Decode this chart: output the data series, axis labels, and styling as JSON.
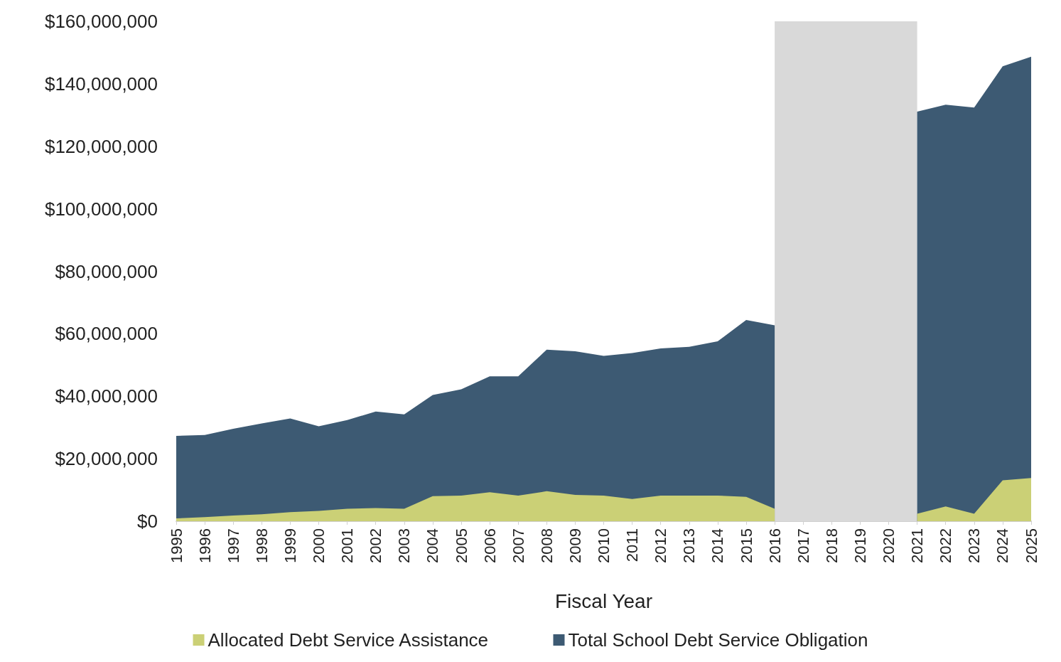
{
  "chart_data": {
    "type": "area",
    "xlabel": "Fiscal Year",
    "categories": [
      "1995",
      "1996",
      "1997",
      "1998",
      "1999",
      "2000",
      "2001",
      "2002",
      "2003",
      "2004",
      "2005",
      "2006",
      "2007",
      "2008",
      "2009",
      "2010",
      "2011",
      "2012",
      "2013",
      "2014",
      "2015",
      "2016",
      "2017",
      "2018",
      "2019",
      "2020",
      "2021",
      "2022",
      "2023",
      "2024",
      "2025"
    ],
    "series": [
      {
        "name": "Allocated Debt Service Assistance",
        "color": "#cbd076",
        "values": [
          900000,
          1300000,
          1800000,
          2200000,
          2900000,
          3300000,
          4000000,
          4200000,
          4000000,
          8000000,
          8200000,
          9300000,
          8200000,
          9600000,
          8400000,
          8200000,
          7100000,
          8200000,
          8200000,
          8200000,
          7800000,
          4000000,
          null,
          null,
          null,
          null,
          2400000,
          4700000,
          2400000,
          13100000,
          13800000
        ]
      },
      {
        "name": "Total School Debt Service Obligation",
        "color": "#3d5a73",
        "values": [
          27300000,
          27600000,
          29600000,
          31300000,
          32900000,
          30400000,
          32400000,
          35100000,
          34200000,
          40400000,
          42200000,
          46400000,
          46400000,
          54900000,
          54400000,
          52900000,
          53800000,
          55300000,
          55800000,
          57600000,
          64400000,
          62700000,
          null,
          null,
          null,
          null,
          131100000,
          133300000,
          132400000,
          145600000,
          148700000
        ]
      }
    ],
    "ylim": [
      0,
      160000000
    ],
    "yticks": [
      {
        "value": 0,
        "label": "$0"
      },
      {
        "value": 20000000,
        "label": "$20,000,000"
      },
      {
        "value": 40000000,
        "label": "$40,000,000"
      },
      {
        "value": 60000000,
        "label": "$60,000,000"
      },
      {
        "value": 80000000,
        "label": "$80,000,000"
      },
      {
        "value": 100000000,
        "label": "$100,000,000"
      },
      {
        "value": 120000000,
        "label": "$120,000,000"
      },
      {
        "value": 140000000,
        "label": "$140,000,000"
      },
      {
        "value": 160000000,
        "label": "$160,000,000"
      }
    ],
    "bands": [
      {
        "axis": "x",
        "from": "2016",
        "to": "2021",
        "color": "#d9d9d9"
      }
    ],
    "grid": false,
    "legend": "bottom"
  }
}
